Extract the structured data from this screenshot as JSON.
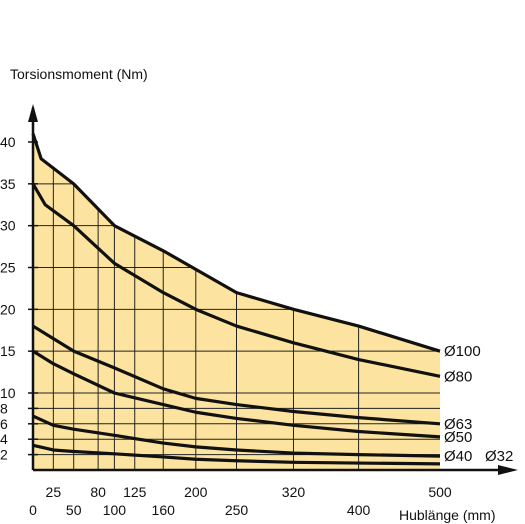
{
  "chart_data": {
    "type": "area",
    "ylabel": "Torsionsmoment  (Nm)",
    "xlabel": "Hublänge (mm)",
    "xlim": [
      0,
      500
    ],
    "ylim": [
      0,
      40
    ],
    "grid": true,
    "fill_color": "#fce4a0",
    "line_color": "#111111",
    "x_ticks_row1": [
      25,
      80,
      125,
      200,
      320,
      500
    ],
    "x_ticks_row2": [
      0,
      50,
      100,
      160,
      250,
      400
    ],
    "y_ticks": [
      2,
      4,
      6,
      8,
      10,
      15,
      20,
      25,
      30,
      35,
      40
    ],
    "series": [
      {
        "name": "Ø100",
        "x": [
          0,
          10,
          50,
          100,
          160,
          250,
          320,
          400,
          500
        ],
        "y": [
          41,
          38,
          35,
          30,
          27,
          22,
          20,
          18,
          15
        ]
      },
      {
        "name": "Ø80",
        "x": [
          0,
          15,
          50,
          100,
          160,
          200,
          250,
          320,
          400,
          500
        ],
        "y": [
          35,
          32.5,
          30,
          25.5,
          22,
          20,
          18,
          16,
          14,
          12
        ]
      },
      {
        "name": "Ø63",
        "x": [
          0,
          25,
          50,
          100,
          160,
          200,
          250,
          320,
          400,
          500
        ],
        "y": [
          18,
          16.5,
          15,
          13,
          10.5,
          9.3,
          8.5,
          7.6,
          6.8,
          6
        ]
      },
      {
        "name": "Ø50",
        "x": [
          0,
          25,
          50,
          100,
          160,
          200,
          250,
          320,
          400,
          500
        ],
        "y": [
          15,
          13.5,
          12.3,
          10,
          8.5,
          7.5,
          6.7,
          5.8,
          5,
          4.3
        ]
      },
      {
        "name": "Ø40",
        "x": [
          0,
          25,
          50,
          100,
          160,
          200,
          250,
          320,
          400,
          500
        ],
        "y": [
          7,
          5.8,
          5.3,
          4.5,
          3.5,
          3,
          2.6,
          2.2,
          2,
          1.8
        ]
      },
      {
        "name": "Ø32",
        "x": [
          0,
          25,
          50,
          100,
          160,
          200,
          250,
          320,
          400,
          500
        ],
        "y": [
          3.2,
          2.6,
          2.4,
          2.1,
          1.7,
          1.4,
          1.2,
          1,
          0.9,
          0.8
        ]
      }
    ]
  }
}
